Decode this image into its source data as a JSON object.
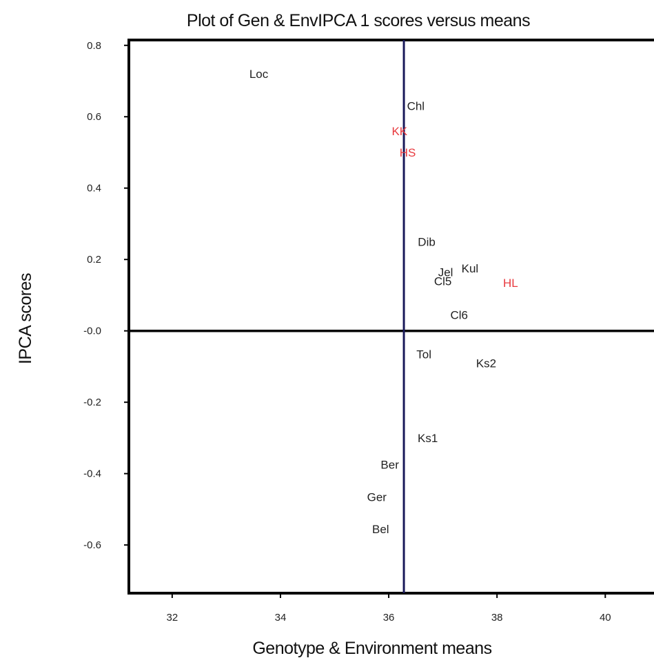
{
  "chart_data": {
    "type": "scatter",
    "title": "Plot of Gen & EnvIPCA 1 scores versus means",
    "xlabel": "Genotype & Environment means",
    "ylabel": "IPCA scores",
    "xlim": [
      31.2,
      40.9
    ],
    "ylim": [
      -0.735,
      0.815
    ],
    "x_ticks": [
      32,
      34,
      36,
      38,
      40
    ],
    "x_tick_labels": [
      "32",
      "34",
      "36",
      "38",
      "40"
    ],
    "y_ticks": [
      0.8,
      0.6,
      0.4,
      0.2,
      0.0,
      -0.2,
      -0.4,
      -0.6
    ],
    "y_tick_labels": [
      "0.8",
      "0.6",
      "0.4",
      "0.2",
      "-0.0",
      "-0.2",
      "-0.4",
      "-0.6"
    ],
    "reference_lines": {
      "x": 36.28,
      "y": 0.0
    },
    "grid": false,
    "colors": {
      "genotype": "#222222",
      "environment": "#e8383d",
      "vline": "#1a1a5a",
      "frame": "#000000"
    },
    "points": [
      {
        "label": "Loc",
        "x": 33.6,
        "y": 0.72,
        "group": "genotype"
      },
      {
        "label": "Chl",
        "x": 36.5,
        "y": 0.63,
        "group": "genotype"
      },
      {
        "label": "KK",
        "x": 36.2,
        "y": 0.56,
        "group": "environment"
      },
      {
        "label": "HS",
        "x": 36.35,
        "y": 0.5,
        "group": "environment"
      },
      {
        "label": "Dib",
        "x": 36.7,
        "y": 0.25,
        "group": "genotype"
      },
      {
        "label": "Jel",
        "x": 37.05,
        "y": 0.165,
        "group": "genotype"
      },
      {
        "label": "Kul",
        "x": 37.5,
        "y": 0.175,
        "group": "genotype"
      },
      {
        "label": "Cl5",
        "x": 37.0,
        "y": 0.14,
        "group": "genotype"
      },
      {
        "label": "HL",
        "x": 38.25,
        "y": 0.135,
        "group": "environment"
      },
      {
        "label": "Cl6",
        "x": 37.3,
        "y": 0.045,
        "group": "genotype"
      },
      {
        "label": "Tol",
        "x": 36.65,
        "y": -0.065,
        "group": "genotype"
      },
      {
        "label": "Ks2",
        "x": 37.8,
        "y": -0.09,
        "group": "genotype"
      },
      {
        "label": "Ks1",
        "x": 36.72,
        "y": -0.3,
        "group": "genotype"
      },
      {
        "label": "Ber",
        "x": 36.02,
        "y": -0.375,
        "group": "genotype"
      },
      {
        "label": "Ger",
        "x": 35.78,
        "y": -0.465,
        "group": "genotype"
      },
      {
        "label": "Bel",
        "x": 35.85,
        "y": -0.555,
        "group": "genotype"
      }
    ]
  }
}
